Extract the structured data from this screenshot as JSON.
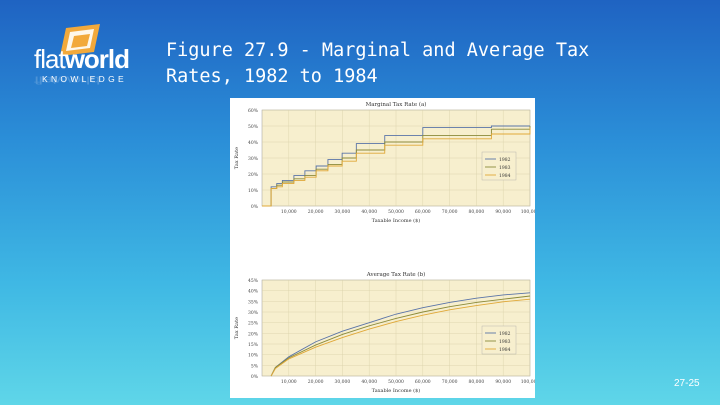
{
  "logo": {
    "word_light": "flat",
    "word_bold": "world",
    "sub": "KNOWLEDGE"
  },
  "title": "Figure 27.9 - Marginal and Average Tax Rates, 1982 to 1984",
  "slide_number": "27-25",
  "colors": {
    "plot_bg": "#f7efce",
    "c1982": "#5a74a8",
    "c1983": "#8b8a3a",
    "c1984": "#e0a838"
  },
  "chart_data": [
    {
      "type": "line",
      "title": "Marginal Tax Rate (a)",
      "xlabel": "Taxable Income ($)",
      "ylabel": "Tax Rate",
      "x_ticks": [
        "10,000",
        "20,000",
        "30,000",
        "40,000",
        "50,000",
        "60,000",
        "70,000",
        "80,000",
        "90,000",
        "100,000"
      ],
      "y_ticks": [
        "0%",
        "10%",
        "20%",
        "30%",
        "40%",
        "50%",
        "60%"
      ],
      "xlim": [
        0,
        100000
      ],
      "ylim": [
        0,
        60
      ],
      "legend": [
        "1982",
        "1983",
        "1984"
      ],
      "legend_position": "right",
      "series": [
        {
          "name": "1982",
          "x": [
            0,
            3400,
            5500,
            7600,
            11900,
            16000,
            20200,
            24600,
            29900,
            35200,
            45800,
            60000,
            85600,
            100000
          ],
          "y": [
            0,
            12,
            14,
            16,
            19,
            22,
            25,
            29,
            33,
            39,
            44,
            49,
            50,
            50
          ]
        },
        {
          "name": "1983",
          "x": [
            0,
            3400,
            5500,
            7600,
            11900,
            16000,
            20200,
            24600,
            29900,
            35200,
            45800,
            60000,
            85600,
            109400
          ],
          "y": [
            0,
            11,
            13,
            15,
            17,
            19,
            23,
            26,
            30,
            35,
            40,
            44,
            48,
            50
          ]
        },
        {
          "name": "1984",
          "x": [
            0,
            3400,
            5500,
            7600,
            11900,
            16000,
            20200,
            24600,
            29900,
            35200,
            45800,
            60000,
            85600,
            100000
          ],
          "y": [
            0,
            11,
            12,
            14,
            16,
            18,
            22,
            25,
            28,
            33,
            38,
            42,
            45,
            49
          ]
        }
      ]
    },
    {
      "type": "line",
      "title": "Average Tax Rate (b)",
      "xlabel": "Taxable Income ($)",
      "ylabel": "Tax Rate",
      "x_ticks": [
        "10,000",
        "20,000",
        "30,000",
        "40,000",
        "50,000",
        "60,000",
        "70,000",
        "80,000",
        "90,000",
        "100,000"
      ],
      "y_ticks": [
        "0%",
        "5%",
        "10%",
        "15%",
        "20%",
        "25%",
        "30%",
        "35%",
        "40%",
        "45%"
      ],
      "xlim": [
        0,
        100000
      ],
      "ylim": [
        0,
        45
      ],
      "legend": [
        "1982",
        "1983",
        "1984"
      ],
      "legend_position": "right",
      "series": [
        {
          "name": "1982",
          "x": [
            3400,
            5000,
            10000,
            20000,
            30000,
            40000,
            50000,
            60000,
            70000,
            80000,
            90000,
            100000
          ],
          "y": [
            0,
            4,
            9,
            16,
            21,
            25,
            29,
            32,
            34.5,
            36.5,
            38,
            39
          ]
        },
        {
          "name": "1983",
          "x": [
            3400,
            5000,
            10000,
            20000,
            30000,
            40000,
            50000,
            60000,
            70000,
            80000,
            90000,
            100000
          ],
          "y": [
            0,
            4,
            8.5,
            14.5,
            19.5,
            23.5,
            27,
            30,
            32.5,
            34.5,
            36,
            37.5
          ]
        },
        {
          "name": "1984",
          "x": [
            3400,
            5000,
            10000,
            20000,
            30000,
            40000,
            50000,
            60000,
            70000,
            80000,
            90000,
            100000
          ],
          "y": [
            0,
            3.5,
            8,
            13.5,
            18,
            22,
            25.5,
            28.5,
            31,
            33,
            34.8,
            36
          ]
        }
      ]
    }
  ]
}
